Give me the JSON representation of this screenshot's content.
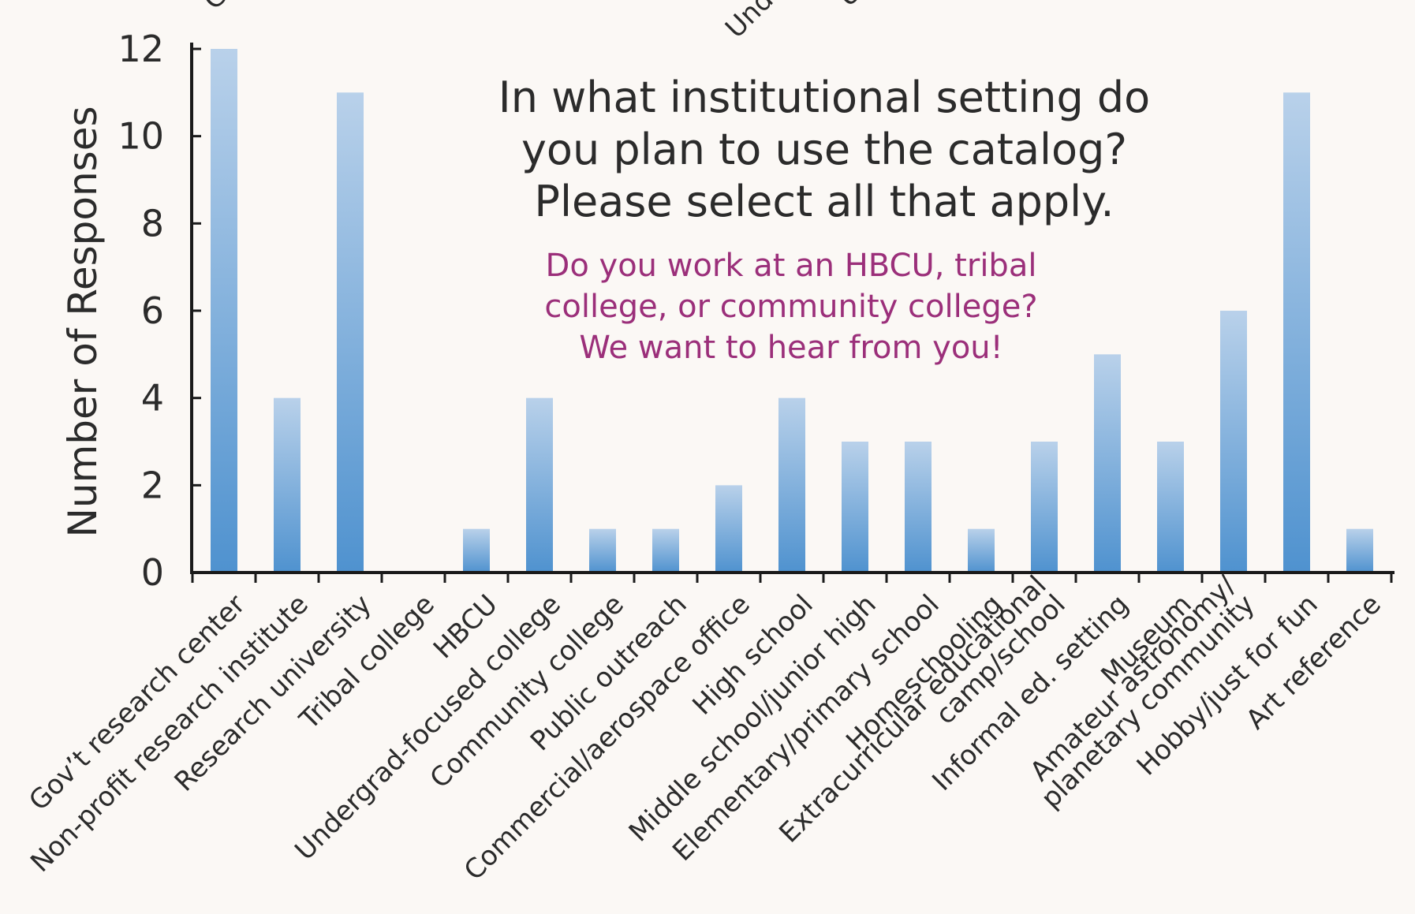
{
  "chart_data": {
    "type": "bar",
    "title": "In what institutional setting do you plan to use the catalog? Please select all that apply.",
    "title_lines": [
      "In what institutional setting do",
      "you plan to use the catalog?",
      "Please select all that apply."
    ],
    "subtitle_lines": [
      "Do you work at an HBCU, tribal",
      "college, or community college?",
      "We want to hear from you!"
    ],
    "ylabel": "Number of Responses",
    "xlabel": "",
    "ylim": [
      0,
      12
    ],
    "yticks": [
      0,
      2,
      4,
      6,
      8,
      10,
      12
    ],
    "categories": [
      "Gov't research center",
      "Non-profit research institute",
      "Research university",
      "Tribal college",
      "HBCU",
      "Undergrad-focused college",
      "Community college",
      "Public outreach",
      "Commercial/aerospace office",
      "High school",
      "Middle school/junior high",
      "Elementary/primary school",
      "Homeschooling",
      "Extracurricular educational camp/school",
      "Informal ed. setting",
      "Museum",
      "Amateur astronomy/ planetary community",
      "Hobby/just for fun",
      "Art reference"
    ],
    "category_label_lines": [
      [
        "Gov’t research center"
      ],
      [
        "Non-profit research institute"
      ],
      [
        "Research university"
      ],
      [
        "Tribal college"
      ],
      [
        "HBCU"
      ],
      [
        "Undergrad-focused college"
      ],
      [
        "Community college"
      ],
      [
        "Public outreach"
      ],
      [
        "Commercial/aerospace office"
      ],
      [
        "High school"
      ],
      [
        "Middle school/junior high"
      ],
      [
        "Elementary/primary school"
      ],
      [
        "Homeschooling"
      ],
      [
        "Extracurricular educational",
        "camp/school"
      ],
      [
        "Informal ed. setting"
      ],
      [
        "Museum"
      ],
      [
        "Amateur astronomy/",
        "planetary community"
      ],
      [
        "Hobby/just for fun"
      ],
      [
        "Art reference"
      ]
    ],
    "top_clipped_labels": [
      "Gr",
      "Und",
      "U"
    ],
    "values": [
      12,
      4,
      11,
      0,
      1,
      4,
      1,
      1,
      2,
      4,
      3,
      3,
      1,
      3,
      5,
      3,
      6,
      11,
      1
    ],
    "grid": false,
    "legend": "none",
    "colors": {
      "bar_top": "#b9d1ea",
      "bar_bottom": "#4f92cf",
      "axis": "#1a1a1a",
      "text": "#2b2b2b",
      "subtitle": "#9b2f7a",
      "background": "#fbf8f5"
    }
  }
}
